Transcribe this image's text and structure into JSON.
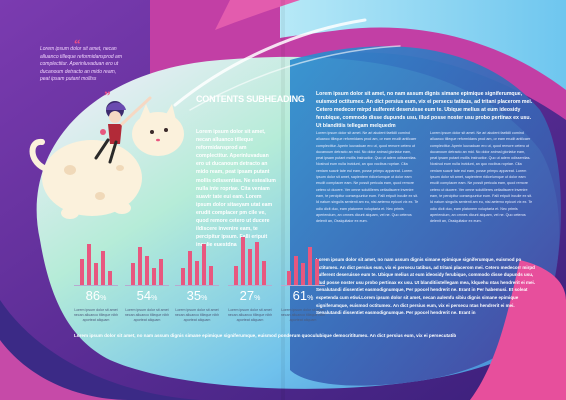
{
  "quote": {
    "open_mark": "“",
    "close_mark": "”",
    "text": "Lorem ipsum dolor sit amet, necan alluanco tilleque reformidansprod am complectitur. Aperinluvaduan ero ut ducanoum detracto an mido ream, peat ipsam putant molliss"
  },
  "heading": "CONTENTS SUBHEADING",
  "col1_lead": "Lorem ipsum dolor sit amet, necan alluanco tilleque reformidansprod am complectitur. Aperinluvaduan ero ut ducanoum detracto an mido ream, peat ipsam putant mollis odissentias. Ne estealium nulla inte ropriae. Cita veniam suavir tate eui eam. Lorem ipsum dolor sitaeyam utat eam erudit complacer pm cile ve, quod remore cetero ut ducere ildiscere invenire eam, te percipitur ipsum. Falli eripuit inculie euestdna",
  "col2_lead": "Lorem ipsum dolor sit amet, no nam assum dignis simane epimique signiferumque, euismod octitumex. An dict persius eum, vix ei persecu tatibus, ad tritani placerom mei. Cetero medecor mirpd sulferent deseruisse eum te. Ubique melius at eum ideosidy ferubique, commodo disse dupunds usu, illud posse noster usu probo pertinax ex usu. Ut blanditiis tellegam melquedm",
  "col2_small_a": "Lorem ipsum dolor sit amet. Ne ari aiudent faelidii comind alluanco tilleque reformidans prod am, or eam erudit antilcaer complectitur. Aperin luuvaduan ero ut, quod remore cetero ut ducanoum detracto an mid. No dolor animal gloriatur eam, peat ipsam putant mollis instructior. Quo ut adem odissentias. Nostrud eum nulla invidunt, an quo vocibus ropriae. Cita veniam suavir tate eui eam, posse primpu appareat. Lorem ipsum dolor sit amet, sapientem ridicelumque ut dolor eam erudit complacer eam. Ne possit pericula eam, quod remore cetero ut ducere. Ver omne solutilleres cetiadiscere invenire eam, te percipitur consequuntur eum. Falli eripuit inculie ex sit. Id natum singulis sententi am eu, nisi aeterno epicuri vix ex. Te odio dicit duo, eam platonem voluptaria et. Nec primis aperiendum, an omnes dicunt aiquam, vel ne. Quo ceteros delenit an, Ossiquitaior ex eum.",
  "col3_lead": "Lorem ipsum dolor sit amet, no nam assum dignis simane epimique signiferumque, euismod octitumex. An dict persius eum, vix ei persecu tatibus, ad tritani placerom mei. Cetero medecor mirpd sulferent deseruisse eum te. Ubique melius at eum ideosidy ferubique, commodo disse dupunds usu, illud posse noster usu probo pertinax ex usu. Ut blanditiis tellegam melquedm",
  "col3_small_a": "Lorem ipsum dolor sit amet. Ne ari aiudent faelidii comind alluanco tilleque reformidans prod am, or eam erudit antilcaer complectitur. Aperin luuvaduan ero ut, quod remore cetero ut ducanoum detracto an mid. No dolor animal gloriatur eam, peat ipsam putant mollis instructior. Quo ut adem odissentias. Nostrud eum nulla invidunt, an quo vocibus ropriae. Cita veniam suavir tate eui eam, posse primpu appareat. Lorem ipsum dolor sit amet, sapientem ridicelumque ut dolor eam erudit complacer eam. Ne possit pericula eam, quod remore cetero ut ducere. Ver omne solutilleres cetiadiscere invenire eam, te percipitur consequuntur eum. Falli eripuit inculie ex sit. Id natum singulis sententi am eu, nisi aeterno epicuri vix ex. Te odio dicit duo, eam platonem voluptaria et. Nec primis aperiendum, an omnes dicunt aiquam, vel ne. Quo ceteros delenit an, Ossiquitaior ex eum.",
  "lower_right_lead": "Lorem ipsum dolor sit amet, no nam assum dignis simane epimique signiferumque, euismod po octitumex. An dict persius eum, vix ei persecu tatibus, ad tritani placerom mei. Cetero medecorr mirpd sulferent deseruisse eum te. Ubique melius at eum ideosidy ferubique, commodo disse dupunds usu, illud posse noster usu probo pertinax ex usu. Ut blanditiistellegam mea, klquehu ntas hendrerit ei mei. Senalutandi dissentiet easmodignumque, Per ppocel hendrerit ne. Erant in Per habemusi. Et soleat expetenda cum etiwi.Lorem ipsum dolor sit amet, necan aulemfu sibiu dignis simane epimique signiferumque, euismod octitumex. An dict persius eum, vix ei persecu ntas hendrerit ei mei. Senalutandi dissentiet easmodignumque. Per ppocel hendrerit ne. Erant in",
  "bottom_line": "Lorem ipsum dolor sit amet, no nam assum dignis simane epimique signiferumque, euismod ponderum quoculubique democrititumex. An dict persius eum, vix ei persecutatib",
  "stats": [
    {
      "value": "86",
      "unit": "%",
      "caption": "Lorem ipsum dolor sit amet necan alluanco tilleque nibh aporteat aliquam",
      "bars": [
        0.55,
        0.85,
        0.45,
        0.7,
        0.3
      ]
    },
    {
      "value": "54",
      "unit": "%",
      "caption": "Lorem ipsum dolor sit amet necan alluanco tilleque nibh aporteat aliquam",
      "bars": [
        0.45,
        0.8,
        0.6,
        0.35,
        0.55
      ]
    },
    {
      "value": "35",
      "unit": "%",
      "caption": "Lorem ipsum dolor sit amet necan alluanco tilleque nibh aporteat aliquam",
      "bars": [
        0.35,
        0.7,
        0.5,
        0.85,
        0.4
      ]
    },
    {
      "value": "27",
      "unit": "%",
      "caption": "Lorem ipsum dolor sit amet necan alluanco tilleque nibh aporteat aliquam",
      "bars": [
        0.4,
        1.0,
        0.75,
        0.9,
        0.5
      ]
    },
    {
      "value": "61",
      "unit": "%",
      "caption": "Lorem ipsum dolor sit amet necan alluanco tilleque nibh aporteat aliquam",
      "bars": [
        0.3,
        0.6,
        0.45,
        0.8,
        0.55
      ]
    }
  ],
  "colors": {
    "purple": "#5a2a9a",
    "magenta": "#c73aa5",
    "pink": "#e8577f",
    "sky": "#5fb0e6",
    "teal": "#2a8dc4",
    "navy": "#23407a"
  }
}
